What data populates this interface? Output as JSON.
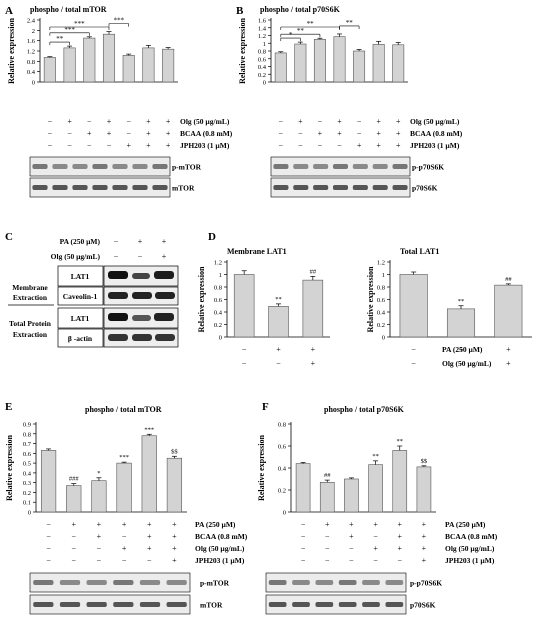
{
  "chart_data": [
    {
      "panel": "A",
      "type": "bar",
      "title": "phospho / total mTOR",
      "ylabel": "Relative expression",
      "ylim": [
        0,
        2.4
      ],
      "yticks": [
        "0",
        "0.4",
        "0.8",
        "1.2",
        "1.6",
        "2",
        "2.4"
      ],
      "categories": [
        "1",
        "2",
        "3",
        "4",
        "5",
        "6",
        "7"
      ],
      "values": [
        0.95,
        1.32,
        1.7,
        1.85,
        1.03,
        1.32,
        1.27
      ],
      "errors": [
        0.03,
        0.07,
        0.05,
        0.1,
        0.05,
        0.1,
        0.06
      ],
      "bar_marks": [
        "",
        "",
        "",
        "",
        "",
        "",
        ""
      ],
      "brackets": [
        {
          "from": 0,
          "to": 1,
          "label": "**"
        },
        {
          "from": 0,
          "to": 2,
          "label": "***"
        },
        {
          "from": 0,
          "to": 3,
          "label": "***"
        },
        {
          "from": 3,
          "to": 4,
          "label": "***"
        }
      ],
      "conditions": [
        {
          "label": "Olg (50 µg/mL)",
          "signs": [
            "−",
            "+",
            "−",
            "+",
            "−",
            "+",
            "+"
          ]
        },
        {
          "label": "BCAA (0.8 mM)",
          "signs": [
            "−",
            "−",
            "+",
            "+",
            "−",
            "+",
            "+"
          ]
        },
        {
          "label": "JPH203 (1 µM)",
          "signs": [
            "−",
            "−",
            "−",
            "−",
            "+",
            "+",
            "+"
          ]
        }
      ],
      "blots": [
        "p-mTOR",
        "mTOR"
      ]
    },
    {
      "panel": "B",
      "type": "bar",
      "title": "phospho / total p70S6K",
      "ylabel": "Relative expression",
      "ylim": [
        0,
        1.6
      ],
      "yticks": [
        "0",
        "0.2",
        "0.4",
        "0.6",
        "0.8",
        "1",
        "1.2",
        "1.4",
        "1.6"
      ],
      "categories": [
        "1",
        "2",
        "3",
        "4",
        "5",
        "6",
        "7"
      ],
      "values": [
        0.75,
        0.98,
        1.1,
        1.17,
        0.8,
        0.97,
        0.96
      ],
      "errors": [
        0.03,
        0.05,
        0.03,
        0.07,
        0.04,
        0.08,
        0.06
      ],
      "bar_marks": [
        "",
        "",
        "",
        "",
        "",
        "",
        ""
      ],
      "brackets": [
        {
          "from": 0,
          "to": 1,
          "label": "*"
        },
        {
          "from": 0,
          "to": 2,
          "label": "**"
        },
        {
          "from": 0,
          "to": 3,
          "label": "**"
        },
        {
          "from": 3,
          "to": 4,
          "label": "**"
        }
      ],
      "conditions": [
        {
          "label": "Olg (50 µg/mL)",
          "signs": [
            "−",
            "+",
            "−",
            "+",
            "−",
            "+",
            "+"
          ]
        },
        {
          "label": "BCAA (0.8 mM)",
          "signs": [
            "−",
            "−",
            "+",
            "+",
            "−",
            "+",
            "+"
          ]
        },
        {
          "label": "JPH203 (1 µM)",
          "signs": [
            "−",
            "−",
            "−",
            "−",
            "+",
            "+",
            "+"
          ]
        }
      ],
      "blots": [
        "p-p70S6K",
        "p70S6K"
      ]
    },
    {
      "panel": "D",
      "type": "bar",
      "title": "Membrane LAT1",
      "ylabel": "Relative expression",
      "ylim": [
        0,
        1.2
      ],
      "yticks": [
        "0",
        "0.2",
        "0.4",
        "0.6",
        "0.8",
        "1",
        "1.2"
      ],
      "categories": [
        "1",
        "2",
        "3"
      ],
      "values": [
        1.0,
        0.49,
        0.91
      ],
      "errors": [
        0.06,
        0.04,
        0.06
      ],
      "bar_marks": [
        "",
        "**",
        "##"
      ],
      "brackets": [],
      "conditions": [],
      "blots": []
    },
    {
      "panel": "D",
      "type": "bar",
      "title": "Total LAT1",
      "ylabel": "Relative expression",
      "ylim": [
        0,
        1.2
      ],
      "yticks": [
        "0",
        "0.2",
        "0.4",
        "0.6",
        "0.8",
        "1",
        "1.2"
      ],
      "categories": [
        "1",
        "2",
        "3"
      ],
      "values": [
        1.0,
        0.45,
        0.83
      ],
      "errors": [
        0.04,
        0.05,
        0.02
      ],
      "bar_marks": [
        "",
        "**",
        "##"
      ],
      "brackets": [],
      "conditions": [
        {
          "label": "PA (250 µM)",
          "signs": [
            "−",
            "+",
            "+"
          ]
        },
        {
          "label": "Olg (50 µg/mL)",
          "signs": [
            "−",
            "−",
            "+"
          ]
        }
      ],
      "blots": []
    },
    {
      "panel": "E",
      "type": "bar",
      "title": "phospho  /  total mTOR",
      "ylabel": "Relative expression",
      "ylim": [
        0,
        0.9
      ],
      "yticks": [
        "0",
        "0.1",
        "0.2",
        "0.3",
        "0.4",
        "0.5",
        "0.6",
        "0.7",
        "0.8",
        "0.9"
      ],
      "categories": [
        "1",
        "2",
        "3",
        "4",
        "5",
        "6"
      ],
      "values": [
        0.63,
        0.27,
        0.32,
        0.5,
        0.78,
        0.55
      ],
      "errors": [
        0.015,
        0.02,
        0.03,
        0.01,
        0.015,
        0.02
      ],
      "bar_marks": [
        "",
        "###",
        "*",
        "***",
        "***",
        "$$"
      ],
      "brackets": [],
      "conditions": [
        {
          "label": "PA (250 µM)",
          "signs": [
            "−",
            "+",
            "+",
            "+",
            "+",
            "+"
          ]
        },
        {
          "label": "BCAA (0.8 mM)",
          "signs": [
            "−",
            "−",
            "+",
            "−",
            "+",
            "+"
          ]
        },
        {
          "label": "Olg (50 µg/mL)",
          "signs": [
            "−",
            "−",
            "−",
            "+",
            "+",
            "+"
          ]
        },
        {
          "label": "JPH203 (1 µM)",
          "signs": [
            "−",
            "−",
            "−",
            "−",
            "−",
            "+"
          ]
        }
      ],
      "blots": [
        "p-mTOR",
        "mTOR"
      ]
    },
    {
      "panel": "F",
      "type": "bar",
      "title": "phospho  /  total p70S6K",
      "ylabel": "Relative expression",
      "ylim": [
        0,
        0.8
      ],
      "yticks": [
        "0",
        "0.2",
        "0.4",
        "0.6",
        "0.8"
      ],
      "categories": [
        "1",
        "2",
        "3",
        "4",
        "5",
        "6"
      ],
      "values": [
        0.44,
        0.27,
        0.3,
        0.43,
        0.56,
        0.41
      ],
      "errors": [
        0.01,
        0.02,
        0.01,
        0.035,
        0.04,
        0.01
      ],
      "bar_marks": [
        "",
        "##",
        "",
        "**",
        "**",
        "$$"
      ],
      "brackets": [],
      "conditions": [
        {
          "label": "PA (250 µM)",
          "signs": [
            "−",
            "+",
            "+",
            "+",
            "+",
            "+"
          ]
        },
        {
          "label": "BCAA (0.8 mM)",
          "signs": [
            "−",
            "−",
            "+",
            "−",
            "+",
            "+"
          ]
        },
        {
          "label": "Olg (50 µg/mL)",
          "signs": [
            "−",
            "−",
            "−",
            "+",
            "+",
            "+"
          ]
        },
        {
          "label": "JPH203 (1 µM)",
          "signs": [
            "−",
            "−",
            "−",
            "−",
            "−",
            "+"
          ]
        }
      ],
      "blots": [
        "p-p70S6K",
        "p70S6K"
      ]
    }
  ],
  "panel_letters": [
    "A",
    "B",
    "C",
    "D",
    "E",
    "F"
  ],
  "panel_c": {
    "conditions": [
      {
        "label": "PA (250 µM)",
        "signs": [
          "−",
          "+",
          "+"
        ]
      },
      {
        "label": "Olg (50 µg/mL)",
        "signs": [
          "−",
          "−",
          "+"
        ]
      }
    ],
    "group_labels": [
      "Membrane",
      "Extraction",
      "Total Protein",
      "Extraction"
    ],
    "blots": [
      "LAT1",
      "Caveolin-1",
      "LAT1",
      "β -actin"
    ]
  }
}
